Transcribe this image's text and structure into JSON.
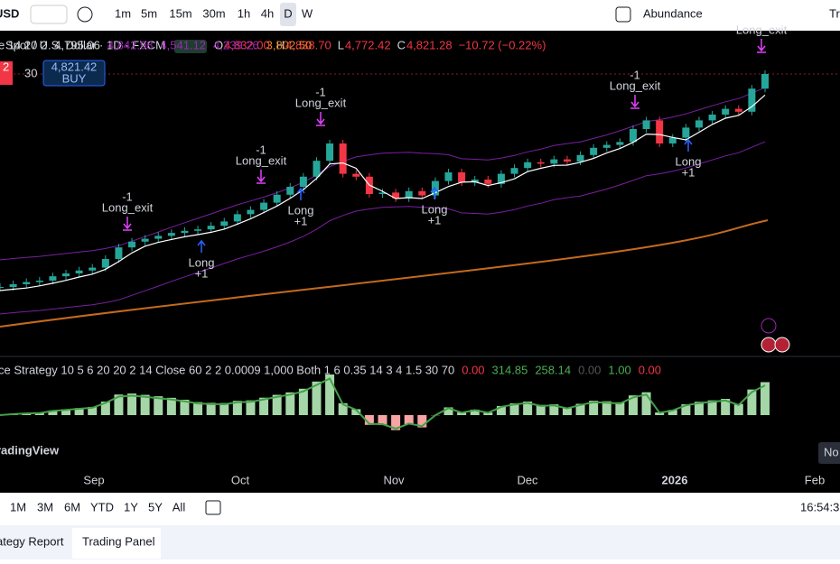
{
  "toolbar": {
    "symbol": "USD",
    "intervals": [
      "1m",
      "5m",
      "15m",
      "30m",
      "1h",
      "4h",
      "D",
      "W"
    ],
    "template": "Abundance",
    "trade": "Tr"
  },
  "legend": {
    "title": "Spot / U.S. Dollar · 1D · FXCM",
    "o_label": "O",
    "open": "4,832.00",
    "h_label": "H",
    "high": "4,838.70",
    "l_label": "L",
    "low": "4,772.42",
    "c_label": "C",
    "close": "4,821.28",
    "change": "−10.72 (−0.22%)"
  },
  "order": {
    "sell": "2",
    "qty": "30",
    "buy_price": "4,821.42",
    "buy": "BUY"
  },
  "indicator": {
    "name": "e 14 20 2",
    "values": [
      "4,795.06",
      "4,842.98",
      "4,541.12",
      "4,239.26",
      "3,802.50"
    ]
  },
  "annotations": {
    "exits": [
      {
        "count": "-1",
        "label": "Long_exit"
      },
      {
        "count": "-1",
        "label": "Long_exit"
      },
      {
        "count": "-1",
        "label": "Long_exit"
      },
      {
        "count": "-1",
        "label": "Long_exit"
      },
      {
        "label": "Long_exit"
      }
    ],
    "entries": [
      {
        "label": "Long",
        "count": "+1"
      },
      {
        "label": "Long",
        "count": "+1"
      },
      {
        "label": "Long",
        "count": "+1"
      },
      {
        "label": "Long",
        "count": "+1"
      }
    ]
  },
  "strategy": {
    "name": "ce Strategy 10 5 6 20 20 2 14 Close 60 2 2 0.0009 1,000 Both 1 6 0.35 14 3 4 1.5 30 70",
    "values": [
      "0.00",
      "314.85",
      "258.14",
      "0.00",
      "1.00",
      "0.00"
    ]
  },
  "logo": "radingView",
  "time_axis": [
    "Sep",
    "Oct",
    "Nov",
    "Dec",
    "2026",
    "Feb"
  ],
  "no_button": "No",
  "ranges": [
    "1M",
    "3M",
    "6M",
    "YTD",
    "1Y",
    "5Y",
    "All"
  ],
  "clock": "16:54:3",
  "tabs": [
    "ategy Report",
    "Trading Panel"
  ],
  "chart_data": {
    "type": "candlestick",
    "closes": [
      3346,
      3365,
      3380,
      3390,
      3420,
      3440,
      3460,
      3480,
      3540,
      3620,
      3660,
      3680,
      3700,
      3720,
      3735,
      3745,
      3770,
      3800,
      3850,
      3880,
      3930,
      3985,
      4040,
      4110,
      4220,
      4340,
      4130,
      4110,
      3990,
      4000,
      3960,
      4010,
      3980,
      4080,
      4140,
      4070,
      4090,
      4060,
      4130,
      4170,
      4210,
      4200,
      4230,
      4215,
      4260,
      4310,
      4330,
      4350,
      4440,
      4500,
      4340,
      4380,
      4450,
      4500,
      4540,
      4580,
      4560,
      4720,
      4821.28
    ],
    "up_color": "#26a69a",
    "down_color": "#f23645"
  }
}
